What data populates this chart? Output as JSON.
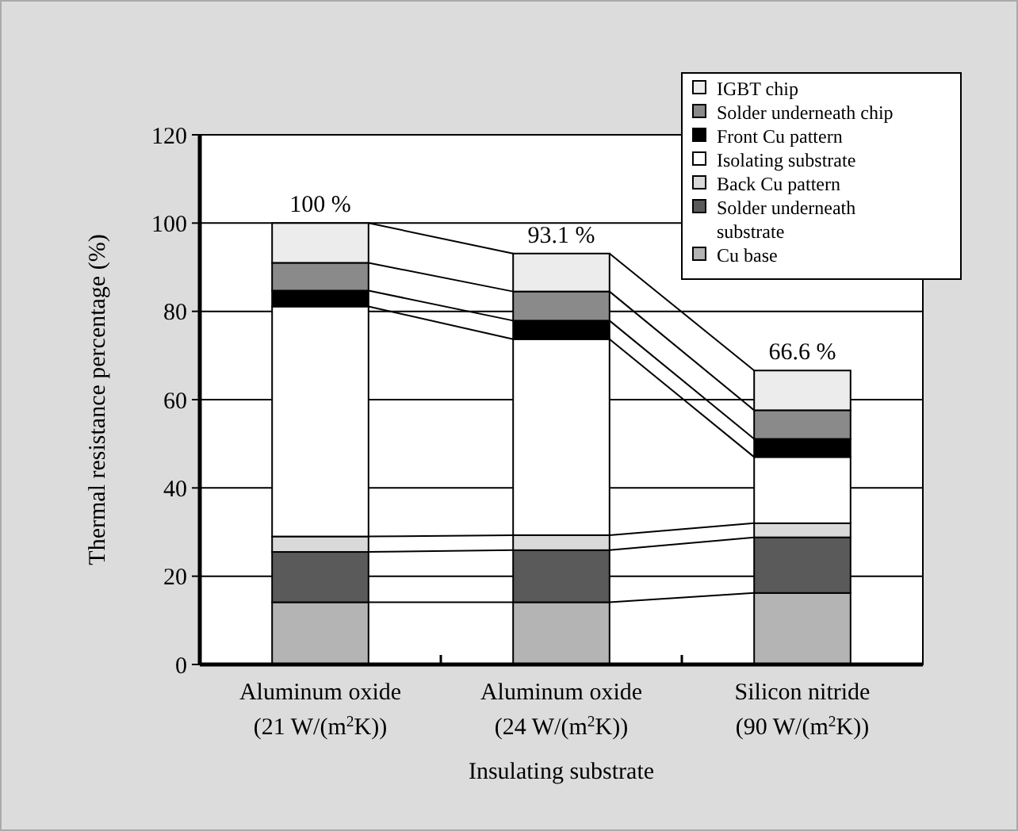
{
  "chart_data": {
    "type": "bar",
    "stacked": true,
    "xlabel": "Insulating substrate",
    "ylabel": "Thermal resistance percentage (%)",
    "categories": [
      "Aluminum oxide\n(21 W/(m$^{2}$K))",
      "Aluminum oxide\n(24 W/(m$^{2}$K))",
      "Silicon nitride\n(90 W/(m$^{2}$K))"
    ],
    "series": [
      {
        "name": "Cu base",
        "color": "#b4b4b4",
        "values": [
          14.1,
          14.1,
          16.2
        ]
      },
      {
        "name": "Solder underneath substrate",
        "color": "#5a5a5a",
        "values": [
          11.4,
          11.8,
          12.6
        ]
      },
      {
        "name": "Back Cu pattern",
        "color": "#d9d9d9",
        "values": [
          3.5,
          3.4,
          3.2
        ]
      },
      {
        "name": "Isolating substrate",
        "color": "#ffffff",
        "values": [
          52.1,
          44.4,
          15.0
        ]
      },
      {
        "name": "Front Cu pattern",
        "color": "#000000",
        "values": [
          3.6,
          4.2,
          4.1
        ]
      },
      {
        "name": "Solder underneath chip",
        "color": "#8a8a8a",
        "values": [
          6.3,
          6.6,
          6.5
        ]
      },
      {
        "name": "IGBT chip",
        "color": "#ececec",
        "values": [
          9.0,
          8.6,
          9.0
        ]
      }
    ],
    "totals": [
      "100 %",
      "93.1 %",
      "66.6 %"
    ],
    "ylim": [
      0,
      120
    ],
    "yticks": [
      0,
      20,
      40,
      60,
      80,
      100,
      120
    ],
    "grid": "y",
    "legend": "top right"
  }
}
